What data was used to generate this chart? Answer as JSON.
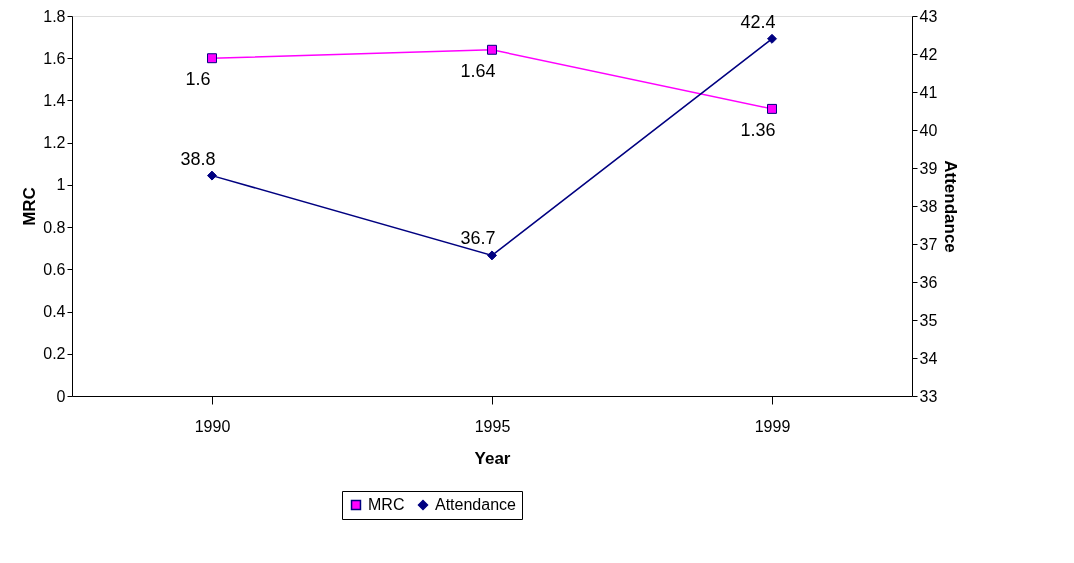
{
  "chart_data": {
    "type": "line",
    "xlabel": "Year",
    "ylabel": "MRC",
    "y2label": "Attendance",
    "categories": [
      "1990",
      "1995",
      "1999"
    ],
    "series": [
      {
        "name": "MRC",
        "color": "#ff00ff",
        "values": [
          1.6,
          1.64,
          1.36
        ],
        "marker": "square"
      },
      {
        "name": "Attendance",
        "color": "#000080",
        "values": [
          38.8,
          36.7,
          42.4
        ],
        "marker": "diamond",
        "axis": "y2"
      }
    ],
    "ylim": [
      0,
      1.8
    ],
    "yticks": [
      0,
      0.2,
      0.4,
      0.6,
      0.8,
      1,
      1.2,
      1.4,
      1.6,
      1.8
    ],
    "y2lim": [
      33,
      43
    ],
    "y2ticks": [
      33,
      34,
      35,
      36,
      37,
      38,
      39,
      40,
      41,
      42,
      43
    ],
    "data_labels": true,
    "grid": false,
    "legend": "bottom",
    "line_style": "solid"
  }
}
